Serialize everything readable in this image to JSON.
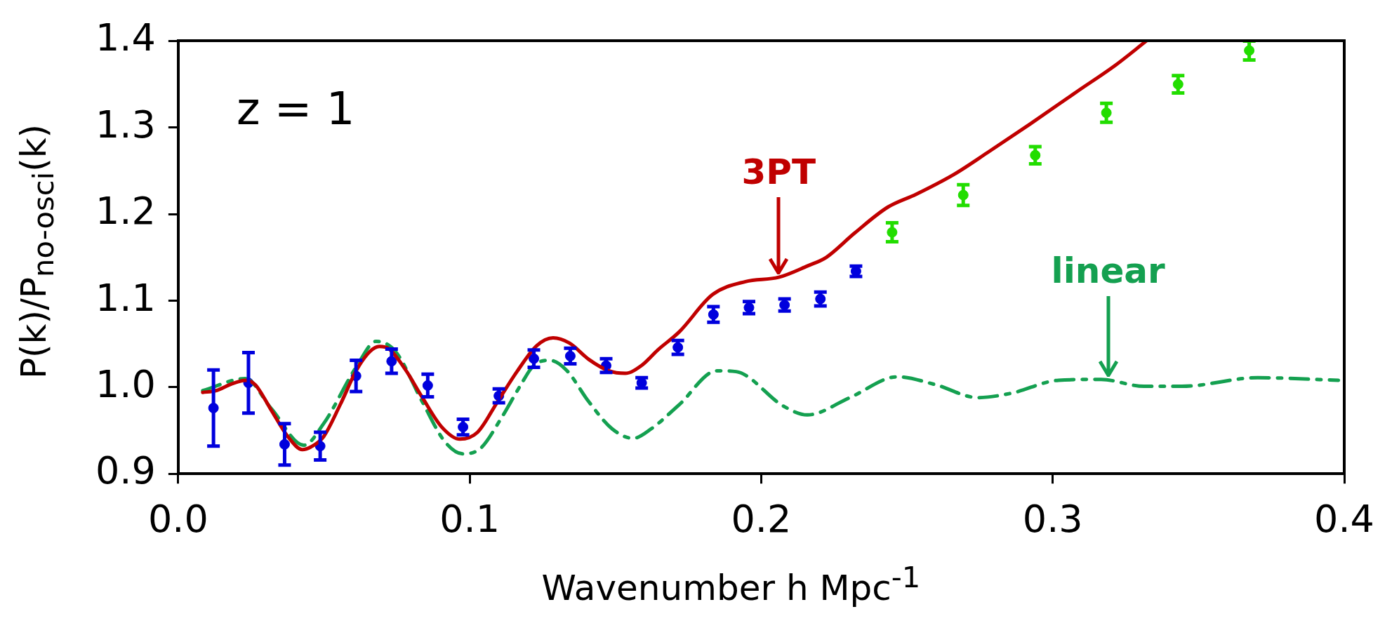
{
  "chart_data": {
    "type": "scatter",
    "xlabel": "Wavenumber h Mpc$^{-1}$",
    "ylabel": "P(k)/P$_{no-osci}$(k)",
    "xlim": [
      0,
      0.4
    ],
    "xticks": [
      {
        "value": 0,
        "label": "0.0"
      },
      0.1,
      0.2,
      0.3,
      0.4
    ],
    "ylim": [
      0.9,
      1.4
    ],
    "yticks": [
      0.9,
      {
        "value": 1.0,
        "label": "1.0"
      },
      1.1,
      1.2,
      1.3,
      1.4
    ],
    "grid": false,
    "legend": false,
    "annotations": [
      "z = 1",
      {
        "text": "3PT",
        "x": 0.206,
        "y": 1.127
      },
      {
        "text": "linear",
        "x": 0.319,
        "y": 1.009
      }
    ],
    "series": [
      {
        "type": "line",
        "color": "#c00000",
        "line_style": "solid",
        "marker": "none",
        "x": [
          0.0084,
          0.0129,
          0.0185,
          0.023,
          0.0264,
          0.032,
          0.0376,
          0.0426,
          0.0455,
          0.0499,
          0.0556,
          0.0612,
          0.0657,
          0.069,
          0.0724,
          0.078,
          0.0836,
          0.0904,
          0.0966,
          0.1027,
          0.1095,
          0.1162,
          0.123,
          0.1286,
          0.1342,
          0.1409,
          0.1477,
          0.1533,
          0.1589,
          0.1645,
          0.1719,
          0.1833,
          0.1946,
          0.206,
          0.2158,
          0.2223,
          0.232,
          0.2434,
          0.2532,
          0.2662,
          0.2776,
          0.2922,
          0.3085,
          0.3215,
          0.3321
        ],
        "values": [
          0.994,
          0.996,
          1.004,
          1.008,
          1.003,
          0.973,
          0.943,
          0.928,
          0.931,
          0.943,
          0.98,
          1.02,
          1.041,
          1.047,
          1.044,
          1.02,
          0.989,
          0.954,
          0.94,
          0.948,
          0.983,
          1.018,
          1.048,
          1.057,
          1.051,
          1.032,
          1.019,
          1.016,
          1.025,
          1.043,
          1.064,
          1.107,
          1.122,
          1.127,
          1.14,
          1.15,
          1.178,
          1.208,
          1.223,
          1.246,
          1.271,
          1.304,
          1.342,
          1.372,
          1.4
        ]
      },
      {
        "type": "line",
        "color": "#14a050",
        "line_style": "dashed",
        "marker": "none",
        "x": [
          0.0084,
          0.023,
          0.032,
          0.0431,
          0.0499,
          0.0612,
          0.0679,
          0.0746,
          0.0836,
          0.0915,
          0.0977,
          0.1039,
          0.1106,
          0.1174,
          0.1219,
          0.1275,
          0.1331,
          0.1409,
          0.1488,
          0.1561,
          0.1623,
          0.1719,
          0.1848,
          0.1914,
          0.2077,
          0.2158,
          0.2304,
          0.2467,
          0.2597,
          0.2743,
          0.2857,
          0.302,
          0.3166,
          0.3313,
          0.3443,
          0.3703,
          0.398
        ],
        "values": [
          0.996,
          1.01,
          0.975,
          0.933,
          0.958,
          1.024,
          1.053,
          1.041,
          0.984,
          0.937,
          0.923,
          0.93,
          0.963,
          1.002,
          1.025,
          1.031,
          1.02,
          0.983,
          0.952,
          0.941,
          0.952,
          0.98,
          1.019,
          1.018,
          0.978,
          0.968,
          0.988,
          1.012,
          1.003,
          0.988,
          0.993,
          1.008,
          1.009,
          1.001,
          1.001,
          1.011,
          1.008
        ]
      },
      {
        "color": "#0000dd",
        "marker": "circle",
        "x": [
          0.0121,
          0.0241,
          0.0365,
          0.0487,
          0.061,
          0.0732,
          0.0856,
          0.0977,
          0.11,
          0.122,
          0.1345,
          0.1468,
          0.159,
          0.1714,
          0.1836,
          0.1958,
          0.208,
          0.2203,
          0.2325
        ],
        "values": [
          0.976,
          1.005,
          0.934,
          0.932,
          1.013,
          1.03,
          1.002,
          0.954,
          0.99,
          1.033,
          1.036,
          1.025,
          1.005,
          1.046,
          1.084,
          1.092,
          1.095,
          1.102,
          1.134
        ],
        "errors": [
          0.044,
          0.035,
          0.024,
          0.016,
          0.018,
          0.014,
          0.013,
          0.009,
          0.008,
          0.01,
          0.009,
          0.008,
          0.006,
          0.008,
          0.009,
          0.007,
          0.007,
          0.008,
          0.006
        ]
      },
      {
        "color": "#22dd00",
        "marker": "circle",
        "x": [
          0.2449,
          0.2693,
          0.294,
          0.3184,
          0.343,
          0.3674
        ],
        "values": [
          1.179,
          1.222,
          1.268,
          1.317,
          1.35,
          1.389
        ],
        "errors": [
          0.011,
          0.012,
          0.01,
          0.011,
          0.01,
          0.011
        ]
      }
    ]
  }
}
